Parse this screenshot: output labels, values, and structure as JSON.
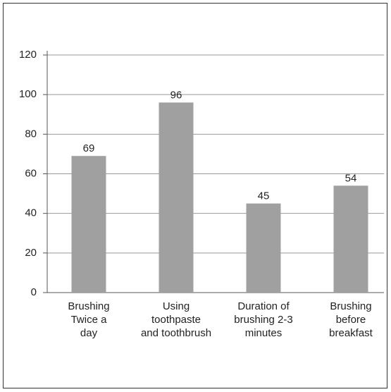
{
  "chart_data": {
    "type": "bar",
    "categories": [
      "Brushing\nTwice a\nday",
      "Using\ntoothpaste\nand toothbrush",
      "Duration of\nbrushing 2-3\nminutes",
      "Brushing\nbefore\nbreakfast"
    ],
    "values": [
      69,
      96,
      45,
      54
    ],
    "color": "#a0a0a0",
    "ylim": [
      0,
      120
    ],
    "yticks": [
      0,
      20,
      40,
      60,
      80,
      100,
      120
    ],
    "grid": true
  }
}
